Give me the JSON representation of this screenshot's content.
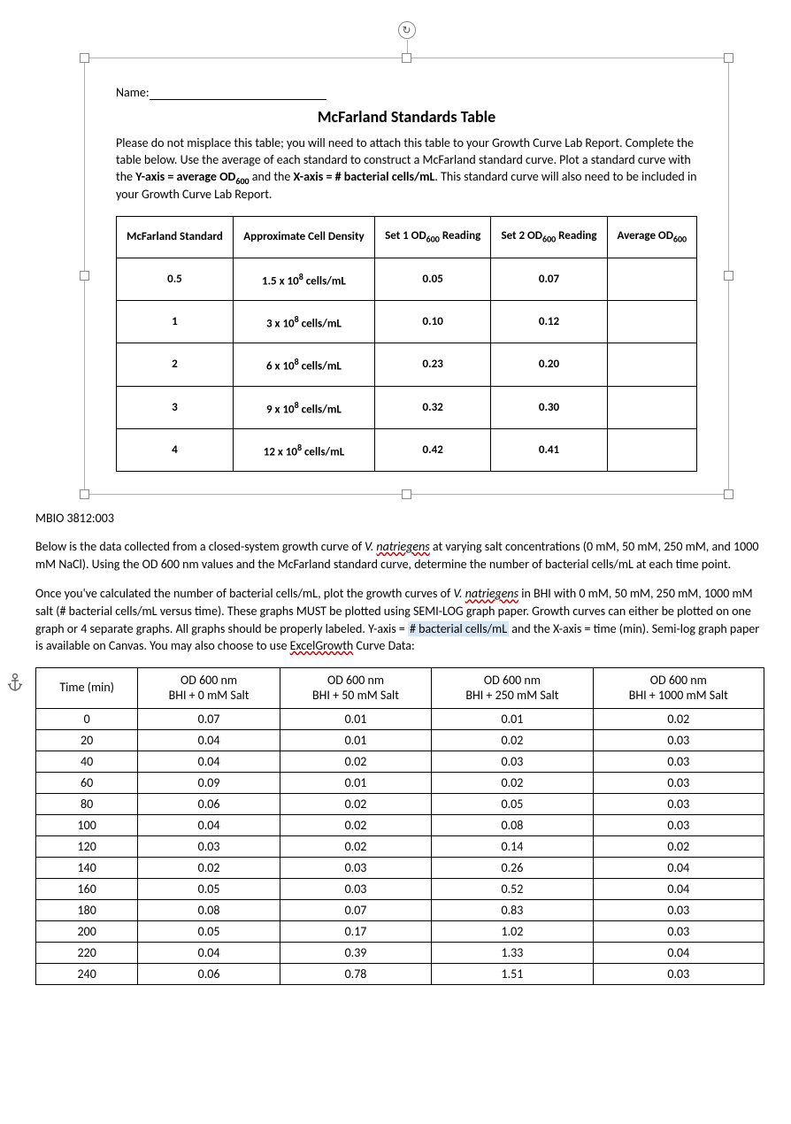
{
  "frame": {
    "name_label": "Name:",
    "title": "McFarland Standards Table",
    "intro_html": "Please do not misplace this table; you will need to attach this table to your Growth Curve Lab Report. Complete the table below. Use the average of each standard to construct a McFarland standard curve. Plot a standard curve with the <b>Y-axis = average OD<span class=\"sub\">600</span></b> and the <b>X-axis = # bacterial cells/mL</b>. This standard curve will also need to be included in your Growth Curve Lab Report.",
    "mcf_headers": {
      "c1": "McFarland Standard",
      "c2": "Approximate Cell Density",
      "c3_html": "Set 1 OD<span class=\"sub\">600</span> Reading",
      "c4_html": "Set 2 OD<span class=\"sub\">600</span> Reading",
      "c5_html": "Average OD<span class=\"sub\">600</span>"
    },
    "mcf_rows": [
      {
        "std": "0.5",
        "density_html": "1.5 x 10<span class=\"sup\">8</span> cells/mL",
        "set1": "0.05",
        "set2": "0.07",
        "avg": ""
      },
      {
        "std": "1",
        "density_html": "3 x 10<span class=\"sup\">8</span> cells/mL",
        "set1": "0.10",
        "set2": "0.12",
        "avg": ""
      },
      {
        "std": "2",
        "density_html": "6 x 10<span class=\"sup\">8</span> cells/mL",
        "set1": "0.23",
        "set2": "0.20",
        "avg": ""
      },
      {
        "std": "3",
        "density_html": "9 x 10<span class=\"sup\">8</span> cells/mL",
        "set1": "0.32",
        "set2": "0.30",
        "avg": ""
      },
      {
        "std": "4",
        "density_html": "12 x 10<span class=\"sup\">8</span> cells/mL",
        "set1": "0.42",
        "set2": "0.41",
        "avg": ""
      }
    ]
  },
  "course_code": "MBIO 3812:003",
  "para1_html": "Below is the data collected from a closed-system growth curve of <em class=\"sp\">V. <span class=\"squig\">natriegens</span></em> at varying salt concentrations (0 mM, 50 mM, 250 mM, and 1000 mM NaCl). Using the OD 600 nm values and the McFarland standard curve, determine the number of bacterial cells/mL at each time point.",
  "para2_html": "Once you've calculated the number of bacterial cells/mL, plot the growth curves of <em class=\"sp\">V. <span class=\"squig\">natriegens</span></em> in BHI with 0 mM, 50 mM, 250 mM, 1000 mM salt (# bacterial cells/mL versus time). These graphs MUST be plotted using SEMI-LOG graph paper. Growth curves can either be plotted on one graph or 4 separate graphs. All graphs should be properly labeled. Y-axis = <span class=\"hl\"># bacterial cells/mL</span> and the X-axis = time (min). Semi-log graph paper is available on Canvas. You may also choose to use <span class=\"squig\">ExcelGrowth</span> Curve Data:",
  "data_table": {
    "headers": {
      "c1": "Time (min)",
      "c2_html": "OD 600 nm<br>BHI + 0 mM Salt",
      "c3_html": "OD 600 nm<br>BHI + 50 mM Salt",
      "c4_html": "OD 600 nm<br>BHI + 250 mM Salt",
      "c5_html": "OD 600 nm<br>BHI + 1000 mM Salt"
    },
    "rows": [
      [
        "0",
        "0.07",
        "0.01",
        "0.01",
        "0.02"
      ],
      [
        "20",
        "0.04",
        "0.01",
        "0.02",
        "0.03"
      ],
      [
        "40",
        "0.04",
        "0.02",
        "0.03",
        "0.03"
      ],
      [
        "60",
        "0.09",
        "0.01",
        "0.02",
        "0.03"
      ],
      [
        "80",
        "0.06",
        "0.02",
        "0.05",
        "0.03"
      ],
      [
        "100",
        "0.04",
        "0.02",
        "0.08",
        "0.03"
      ],
      [
        "120",
        "0.03",
        "0.02",
        "0.14",
        "0.02"
      ],
      [
        "140",
        "0.02",
        "0.03",
        "0.26",
        "0.04"
      ],
      [
        "160",
        "0.05",
        "0.03",
        "0.52",
        "0.04"
      ],
      [
        "180",
        "0.08",
        "0.07",
        "0.83",
        "0.03"
      ],
      [
        "200",
        "0.05",
        "0.17",
        "1.02",
        "0.03"
      ],
      [
        "220",
        "0.04",
        "0.39",
        "1.33",
        "0.04"
      ],
      [
        "240",
        "0.06",
        "0.78",
        "1.51",
        "0.03"
      ]
    ]
  }
}
